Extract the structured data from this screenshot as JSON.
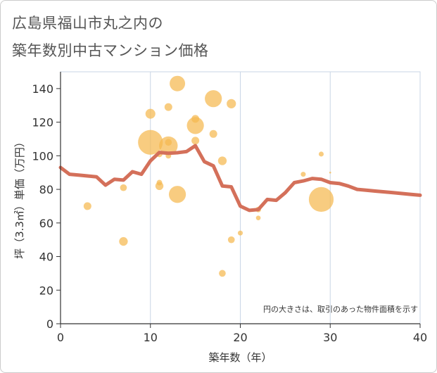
{
  "title_lines": [
    "広島県福山市丸之内の",
    "築年数別中古マンション価格"
  ],
  "note": "円の大きさは、取引のあった物件面積を示す",
  "colors": {
    "bubble": "#f5b84f",
    "line": "#d4705a",
    "grid": "#c9d6e6",
    "plot_border": "#c9d6e6"
  },
  "chart_data": {
    "type": "scatter",
    "xlabel": "築年数（年）",
    "ylabel": "坪（3.3㎡）単価（万円）",
    "xlim": [
      0,
      40
    ],
    "ylim": [
      0,
      150
    ],
    "x_ticks": [
      "0",
      "10",
      "20",
      "30",
      "40"
    ],
    "y_ticks": [
      "0",
      "20",
      "40",
      "60",
      "80",
      "100",
      "120",
      "140"
    ],
    "grid": "x: 10, 20, 30",
    "bubbles": [
      {
        "x": 3,
        "y": 70,
        "size": 2.5
      },
      {
        "x": 7,
        "y": 81,
        "size": 2.2
      },
      {
        "x": 7,
        "y": 49,
        "size": 2.8
      },
      {
        "x": 10,
        "y": 125,
        "size": 3.2
      },
      {
        "x": 10,
        "y": 108,
        "size": 8.0
      },
      {
        "x": 11,
        "y": 101,
        "size": 2.0
      },
      {
        "x": 11,
        "y": 84,
        "size": 1.8
      },
      {
        "x": 11,
        "y": 82,
        "size": 2.6
      },
      {
        "x": 12,
        "y": 129,
        "size": 2.5
      },
      {
        "x": 12,
        "y": 106,
        "size": 6.0
      },
      {
        "x": 12,
        "y": 108,
        "size": 2.2
      },
      {
        "x": 12,
        "y": 100,
        "size": 1.8
      },
      {
        "x": 13,
        "y": 143,
        "size": 5.0
      },
      {
        "x": 13,
        "y": 77,
        "size": 5.5
      },
      {
        "x": 15,
        "y": 122,
        "size": 2.5
      },
      {
        "x": 15,
        "y": 118,
        "size": 5.5
      },
      {
        "x": 15,
        "y": 109,
        "size": 2.5
      },
      {
        "x": 17,
        "y": 134,
        "size": 5.5
      },
      {
        "x": 17,
        "y": 113,
        "size": 2.5
      },
      {
        "x": 18,
        "y": 97,
        "size": 2.8
      },
      {
        "x": 18,
        "y": 30,
        "size": 2.2
      },
      {
        "x": 19,
        "y": 131,
        "size": 3.0
      },
      {
        "x": 19,
        "y": 50,
        "size": 2.2
      },
      {
        "x": 20,
        "y": 54,
        "size": 1.6
      },
      {
        "x": 22,
        "y": 68,
        "size": 1.8
      },
      {
        "x": 22,
        "y": 63,
        "size": 1.5
      },
      {
        "x": 27,
        "y": 89,
        "size": 1.6
      },
      {
        "x": 29,
        "y": 101,
        "size": 1.6
      },
      {
        "x": 29,
        "y": 74,
        "size": 8.0
      },
      {
        "x": 30,
        "y": 90,
        "size": 0.6
      }
    ],
    "trend": {
      "x": [
        0,
        1,
        2,
        3,
        4,
        5,
        6,
        7,
        8,
        9,
        10,
        11,
        12,
        13,
        14,
        15,
        16,
        17,
        18,
        19,
        20,
        21,
        22,
        23,
        24,
        25,
        26,
        27,
        28,
        29,
        30,
        31,
        32,
        33,
        34,
        35,
        36,
        37,
        38,
        39,
        40
      ],
      "y": [
        93,
        89,
        88.5,
        88,
        87.5,
        82.5,
        86,
        85.5,
        90.5,
        89,
        97,
        102,
        101.5,
        101.8,
        102.5,
        106,
        96.5,
        94,
        82,
        81.5,
        70,
        67.5,
        68,
        74,
        73.5,
        78,
        84,
        85,
        86.5,
        86,
        84,
        83.5,
        82,
        80,
        79.5,
        79,
        78.5,
        78,
        77.5,
        77,
        76.5
      ]
    }
  }
}
